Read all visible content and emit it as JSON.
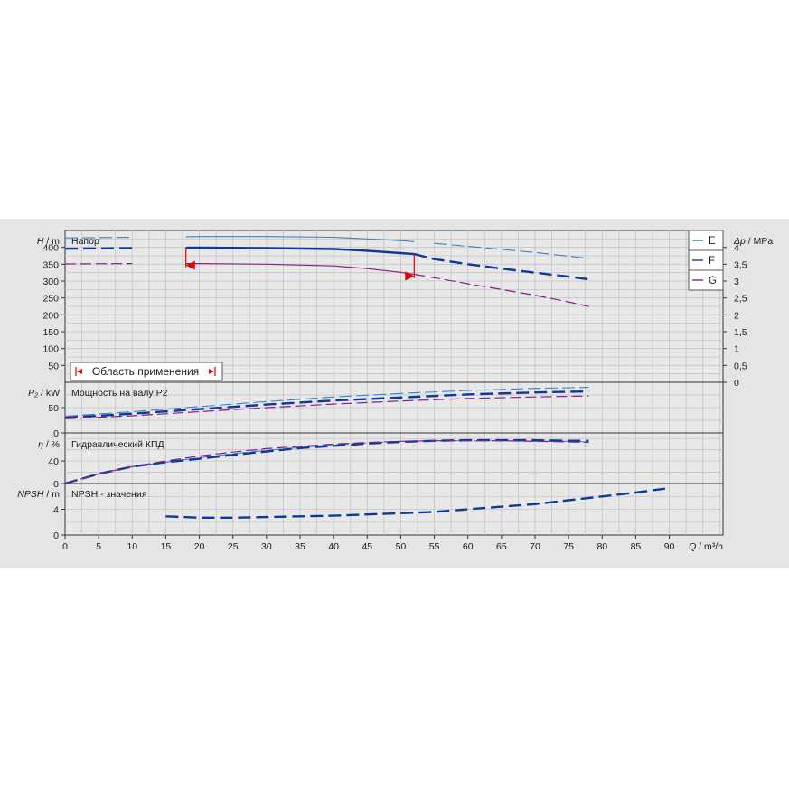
{
  "chart_data": {
    "type": "line",
    "colors": {
      "E": "#3b82c4",
      "F": "#0b3a9a",
      "G": "#8b1b8b",
      "operating_range": "#e00000"
    },
    "legend": {
      "placement": "top-right",
      "items": [
        "E",
        "F",
        "G"
      ]
    },
    "x_axis": {
      "label": "Q / m³/h",
      "label_italic": "Q",
      "label_unit": "/ m³/h",
      "range": [
        0,
        98
      ],
      "ticks": [
        "0",
        "5",
        "10",
        "15",
        "20",
        "25",
        "30",
        "35",
        "40",
        "45",
        "50",
        "55",
        "60",
        "65",
        "70",
        "75",
        "80",
        "85",
        "90"
      ]
    },
    "panels": {
      "head": {
        "title": "Напор",
        "ylabel_italic": "H",
        "ylabel_unit": "/ m",
        "ylim": [
          0,
          450
        ],
        "yticks": [
          "50",
          "100",
          "150",
          "200",
          "250",
          "300",
          "350",
          "400"
        ],
        "right_axis": {
          "label_italic": "Δp",
          "label_unit": "/ MPa",
          "range": [
            0,
            4.5
          ],
          "ticks": [
            "0",
            "0,5",
            "1",
            "1,5",
            "2",
            "2,5",
            "3",
            "3,5",
            "4"
          ]
        },
        "operating_range_label": "Область применения",
        "operating_range": [
          18,
          52
        ],
        "series": [
          {
            "name": "E",
            "x": [
              0,
              10,
              20,
              30,
              40,
              50,
              55,
              60,
              65,
              70,
              75,
              78
            ],
            "y": [
              428,
              430,
              432,
              432,
              430,
              420,
              412,
              403,
              394,
              385,
              374,
              367
            ]
          },
          {
            "name": "F",
            "x": [
              0,
              10,
              20,
              30,
              40,
              45,
              50,
              52,
              55,
              60,
              65,
              70,
              75,
              78
            ],
            "y": [
              396,
              398,
              399,
              398,
              395,
              390,
              383,
              380,
              365,
              350,
              337,
              325,
              313,
              305
            ]
          },
          {
            "name": "G",
            "x": [
              0,
              10,
              20,
              30,
              40,
              45,
              50,
              52,
              55,
              60,
              65,
              70,
              75,
              78
            ],
            "y": [
              351,
              352,
              352,
              350,
              345,
              337,
              326,
              320,
              310,
              292,
              275,
              258,
              238,
              225
            ]
          }
        ]
      },
      "power": {
        "title": "Мощность на валу P2",
        "ylabel_italic": "P₂",
        "ylabel_unit": "/ kW",
        "ylim": [
          0,
          100
        ],
        "yticks": [
          "0",
          "50"
        ],
        "series": [
          {
            "name": "E",
            "x": [
              0,
              10,
              20,
              30,
              40,
              50,
              60,
              70,
              78
            ],
            "y": [
              33,
              42,
              52,
              62,
              71,
              78,
              84,
              88,
              90
            ]
          },
          {
            "name": "F",
            "x": [
              0,
              10,
              20,
              30,
              40,
              50,
              60,
              70,
              78
            ],
            "y": [
              30,
              38,
              47,
              56,
              64,
              70,
              76,
              80,
              82
            ]
          },
          {
            "name": "G",
            "x": [
              0,
              10,
              20,
              30,
              40,
              50,
              60,
              70,
              78
            ],
            "y": [
              28,
              34,
              42,
              50,
              57,
              63,
              68,
              71,
              73
            ]
          }
        ]
      },
      "efficiency": {
        "title": "Гидравлический КПД",
        "ylabel_italic": "η",
        "ylabel_unit": "/ %",
        "ylim": [
          0,
          90
        ],
        "yticks": [
          "0",
          "40"
        ],
        "series": [
          {
            "name": "E",
            "x": [
              0,
              5,
              10,
              15,
              20,
              25,
              30,
              35,
              40,
              45,
              50,
              55,
              60,
              65,
              70,
              75,
              78
            ],
            "y": [
              0,
              17,
              30,
              38,
              46,
              53,
              59,
              64,
              69,
              72,
              75,
              76,
              76,
              76,
              75,
              75,
              74
            ]
          },
          {
            "name": "F",
            "x": [
              0,
              5,
              10,
              15,
              20,
              25,
              30,
              35,
              40,
              45,
              50,
              55,
              60,
              65,
              70,
              75,
              78
            ],
            "y": [
              0,
              17,
              30,
              38,
              44,
              51,
              57,
              63,
              67,
              71,
              74,
              76,
              77,
              77,
              77,
              76,
              76
            ]
          },
          {
            "name": "G",
            "x": [
              0,
              5,
              10,
              15,
              20,
              25,
              30,
              35,
              40,
              45,
              50,
              55,
              60,
              65,
              70,
              75,
              78
            ],
            "y": [
              0,
              17,
              30,
              40,
              49,
              56,
              62,
              66,
              70,
              73,
              75,
              76,
              76,
              76,
              75,
              74,
              73
            ]
          }
        ]
      },
      "npsh": {
        "title": "NPSH - значения",
        "ylabel_italic": "NPSH",
        "ylabel_unit": "/ m",
        "ylim": [
          0,
          8
        ],
        "yticks": [
          "0",
          "4"
        ],
        "series": [
          {
            "name": "F",
            "x": [
              15,
              20,
              25,
              30,
              35,
              40,
              45,
              50,
              55,
              60,
              65,
              70,
              75,
              80,
              85,
              90
            ],
            "y": [
              2.9,
              2.7,
              2.7,
              2.8,
              2.9,
              3.0,
              3.2,
              3.4,
              3.6,
              4.0,
              4.4,
              4.8,
              5.4,
              6.0,
              6.6,
              7.3
            ]
          }
        ]
      }
    }
  }
}
